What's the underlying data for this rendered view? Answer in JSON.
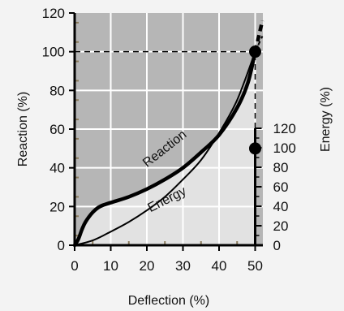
{
  "chart_data": {
    "type": "line",
    "xlabel": "Deflection (%)",
    "ylabel": "Reaction (%)",
    "y2label": "Energy (%)",
    "xlim": [
      0,
      52
    ],
    "ylim": [
      0,
      120
    ],
    "y2lim": [
      0,
      120
    ],
    "x_ticks": [
      "0",
      "10",
      "20",
      "30",
      "40",
      "50"
    ],
    "y_ticks": [
      "0",
      "20",
      "40",
      "60",
      "80",
      "100",
      "120"
    ],
    "y2_ticks": [
      "0",
      "20",
      "40",
      "60",
      "80",
      "100",
      "120"
    ],
    "grid": true,
    "series": [
      {
        "name": "Reaction",
        "axis": "left",
        "x": [
          0,
          1,
          2,
          3,
          5,
          7,
          10,
          15,
          20,
          25,
          30,
          35,
          40,
          45,
          48,
          50
        ],
        "y": [
          0,
          3,
          8,
          12,
          17,
          20,
          22,
          25,
          29,
          34,
          40,
          48,
          57,
          71,
          84,
          100
        ],
        "marker_at": [
          50,
          100
        ],
        "dashed_extension": {
          "x": [
            50,
            52
          ],
          "y": [
            100,
            116
          ]
        }
      },
      {
        "name": "Energy",
        "axis": "right",
        "x": [
          0,
          5,
          10,
          15,
          20,
          25,
          30,
          35,
          40,
          45,
          50
        ],
        "y": [
          0,
          2.5,
          7,
          12,
          18,
          25,
          34,
          44,
          58,
          75,
          100
        ],
        "marker_at": [
          50,
          100
        ],
        "dashed_extension": {
          "x": [
            50,
            52
          ],
          "y": [
            100,
            108
          ]
        }
      }
    ],
    "reference_lines": [
      {
        "type": "horizontal",
        "y": 100,
        "x_from": 0,
        "x_to": 50,
        "style": "dashed"
      },
      {
        "type": "vertical",
        "x": 50,
        "y_from": 0,
        "y_to": 100,
        "style": "dashed"
      }
    ],
    "colors": {
      "plot_bg_upper": "#b6b6b6",
      "plot_bg_lower": "#e2e2e2",
      "grid": "#ffffff",
      "curve": "#000000",
      "page_bg": "#f3f3f3",
      "minor_tick": "#8a7a5a"
    }
  }
}
